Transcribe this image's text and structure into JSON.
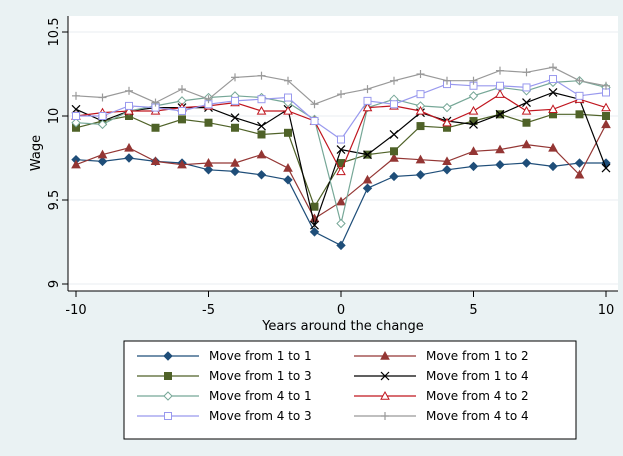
{
  "chart_data": {
    "type": "line",
    "title": "",
    "xlabel": "Years around the change",
    "ylabel": "Wage",
    "xlim": [
      -10,
      10
    ],
    "ylim": [
      9,
      10.5
    ],
    "xticks": [
      "-10",
      "-5",
      "0",
      "5",
      "10"
    ],
    "yticks": [
      "9",
      "9.5",
      "10",
      "10.5"
    ],
    "grid": true,
    "legend_position": "bottom",
    "x": [
      -10,
      -9,
      -8,
      -7,
      -6,
      -5,
      -4,
      -3,
      -2,
      -1,
      0,
      1,
      2,
      3,
      4,
      5,
      6,
      7,
      8,
      9,
      10
    ],
    "series": [
      {
        "name": "Move from 1 to 1",
        "color": "#1f4e79",
        "marker": "diamond-filled",
        "values": [
          9.74,
          9.73,
          9.75,
          9.73,
          9.72,
          9.68,
          9.67,
          9.65,
          9.62,
          9.31,
          9.23,
          9.57,
          9.64,
          9.65,
          9.68,
          9.7,
          9.71,
          9.72,
          9.7,
          9.72,
          9.72
        ]
      },
      {
        "name": "Move from 1 to 2",
        "color": "#943634",
        "marker": "triangle-filled",
        "values": [
          9.71,
          9.77,
          9.81,
          9.73,
          9.71,
          9.72,
          9.72,
          9.77,
          9.69,
          9.39,
          9.49,
          9.62,
          9.75,
          9.74,
          9.73,
          9.79,
          9.8,
          9.83,
          9.81,
          9.65,
          9.95
        ]
      },
      {
        "name": "Move from 1 to 3",
        "color": "#4f6228",
        "marker": "square-filled",
        "values": [
          9.93,
          9.97,
          10.0,
          9.93,
          9.98,
          9.96,
          9.93,
          9.89,
          9.9,
          9.46,
          9.72,
          9.77,
          9.79,
          9.94,
          9.93,
          9.97,
          10.01,
          9.96,
          10.01,
          10.01,
          10.0
        ]
      },
      {
        "name": "Move from 1 to 4",
        "color": "#000000",
        "marker": "x",
        "values": [
          10.04,
          9.97,
          10.03,
          10.05,
          10.05,
          10.05,
          9.99,
          9.94,
          10.04,
          9.35,
          9.8,
          9.77,
          9.89,
          10.02,
          9.97,
          9.95,
          10.01,
          10.08,
          10.14,
          10.1,
          9.69
        ]
      },
      {
        "name": "Move from 4 to 1",
        "color": "#76a797",
        "marker": "diamond-hollow",
        "values": [
          9.96,
          9.95,
          10.03,
          10.06,
          10.09,
          10.11,
          10.12,
          10.11,
          10.08,
          9.98,
          9.36,
          10.05,
          10.1,
          10.06,
          10.05,
          10.12,
          10.17,
          10.15,
          10.2,
          10.21,
          10.17
        ]
      },
      {
        "name": "Move from 4 to 2",
        "color": "#c0161f",
        "marker": "triangle-hollow",
        "values": [
          10.0,
          10.02,
          10.03,
          10.03,
          10.05,
          10.06,
          10.08,
          10.03,
          10.03,
          9.97,
          9.67,
          10.05,
          10.06,
          10.03,
          9.96,
          10.03,
          10.13,
          10.03,
          10.04,
          10.1,
          10.05
        ]
      },
      {
        "name": "Move from 4 to 3",
        "color": "#9999ee",
        "marker": "square-hollow",
        "values": [
          10.0,
          10.0,
          10.06,
          10.05,
          10.03,
          10.07,
          10.09,
          10.1,
          10.11,
          9.97,
          9.86,
          10.09,
          10.07,
          10.13,
          10.19,
          10.18,
          10.18,
          10.17,
          10.22,
          10.12,
          10.14
        ]
      },
      {
        "name": "Move from 4 to 4",
        "color": "#999999",
        "marker": "plus",
        "values": [
          10.12,
          10.11,
          10.15,
          10.08,
          10.16,
          10.1,
          10.23,
          10.24,
          10.21,
          10.07,
          10.13,
          10.16,
          10.21,
          10.25,
          10.21,
          10.21,
          10.27,
          10.26,
          10.29,
          10.21,
          10.18
        ]
      }
    ]
  }
}
